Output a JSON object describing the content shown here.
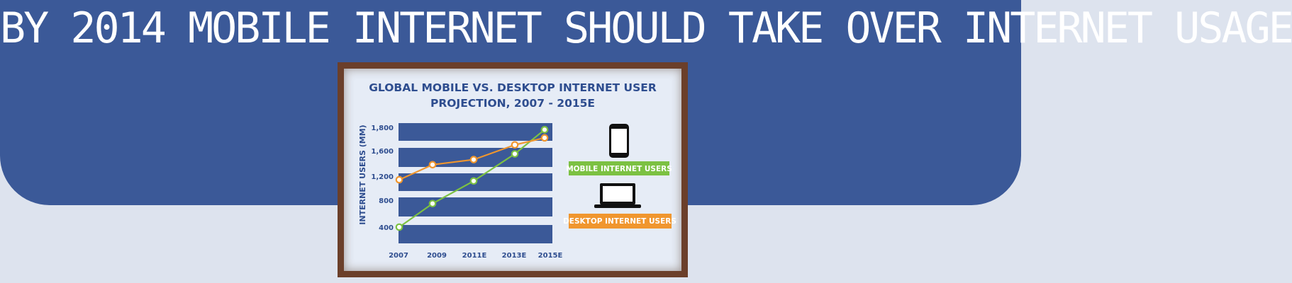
{
  "headline": "BY 2014 MOBILE INTERNET SHOULD TAKE OVER INTERNET USAGE",
  "colors": {
    "banner": "#3b5998",
    "background": "#dde3ee",
    "frame": "#6b3f2a",
    "board": "#e6ecf6",
    "bands": "#3b5998",
    "axis_text": "#2e4d8f",
    "mobile": "#7cc142",
    "desktop": "#f0962e"
  },
  "chart_data": {
    "type": "line",
    "title_lines": [
      "GLOBAL MOBILE VS. DESKTOP INTERNET USER",
      "PROJECTION, 2007 - 2015E"
    ],
    "ylabel": "INTERNET USERS (MM)",
    "xlabel": "",
    "x": [
      "2007",
      "2009",
      "2011E",
      "2013E",
      "2015E"
    ],
    "y_ticks": [
      "400",
      "800",
      "1,200",
      "1,600",
      "1,800"
    ],
    "series": [
      {
        "name": "MOBILE INTERNET USERS",
        "color": "#7cc142",
        "icon": "smartphone-icon",
        "values": [
          400,
          750,
          1120,
          1550,
          1780
        ]
      },
      {
        "name": "DESKTOP INTERNET USERS",
        "color": "#f0962e",
        "icon": "laptop-icon",
        "values": [
          1140,
          1380,
          1460,
          1650,
          1710
        ]
      }
    ],
    "grid": "horizontal bands",
    "legend": "right"
  }
}
